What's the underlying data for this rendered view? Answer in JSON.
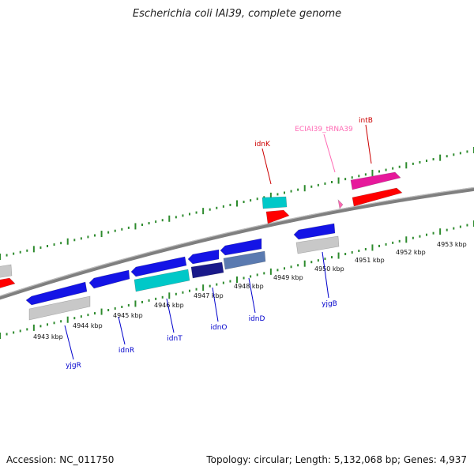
{
  "title": "Escherichia coli IAI39, complete genome",
  "footer": {
    "accession": "Accession: NC_011750",
    "stats": "Topology: circular; Length: 5,132,068 bp; Genes: 4,937"
  },
  "map": {
    "scale_unit": "kbp",
    "scale_labels": [
      "4943 kbp",
      "4944 kbp",
      "4945 kbp",
      "4946 kbp",
      "4947 kbp",
      "4948 kbp",
      "4949 kbp",
      "4950 kbp",
      "4951 kbp",
      "4952 kbp",
      "4953 kbp"
    ],
    "colors": {
      "backbone": "#7f7f7f",
      "ticks": "#2e8b2e",
      "cds": "#1414e6",
      "rna": "#00c8c8",
      "trna": "#ff69b4",
      "gene_red": "#ff0000",
      "gene_pink": "#e6199b",
      "gray": "#c8c8c8",
      "label_blue": "#0000cc",
      "label_red": "#cc0000",
      "label_pink": "#ff69b4"
    },
    "labels": {
      "idnK": "idnK",
      "ecia_trna": "ECIAI39_tRNA39",
      "intB": "intB",
      "yjgR": "yjgR",
      "idnR": "idnR",
      "idnT": "idnT",
      "idnO": "idnO",
      "idnD": "idnD",
      "yjgB": "yjgB"
    }
  }
}
